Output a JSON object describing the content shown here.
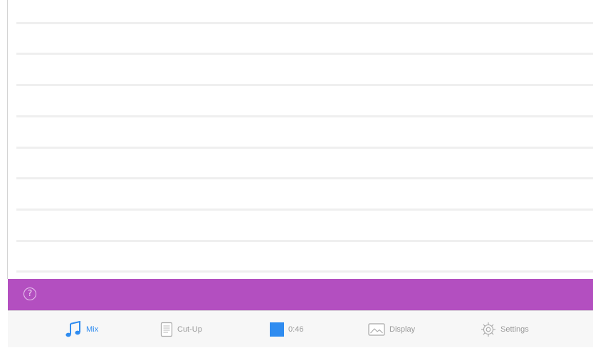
{
  "help": {
    "icon_glyph": "?",
    "bar_color": "#b34fc0"
  },
  "tabs": [
    {
      "id": "mix",
      "label": "Mix",
      "icon": "music-note-icon",
      "active": true
    },
    {
      "id": "cut-up",
      "label": "Cut-Up",
      "icon": "document-icon",
      "active": false
    },
    {
      "id": "timer",
      "label": "0:46",
      "icon": "timer-square-icon",
      "active": false
    },
    {
      "id": "display",
      "label": "Display",
      "icon": "image-icon",
      "active": false
    },
    {
      "id": "settings",
      "label": "Settings",
      "icon": "gear-icon",
      "active": false
    }
  ],
  "colors": {
    "accent": "#2f8cf0",
    "inactive_text": "#9a9a9a",
    "tab_bar_bg": "#f7f7f7"
  }
}
